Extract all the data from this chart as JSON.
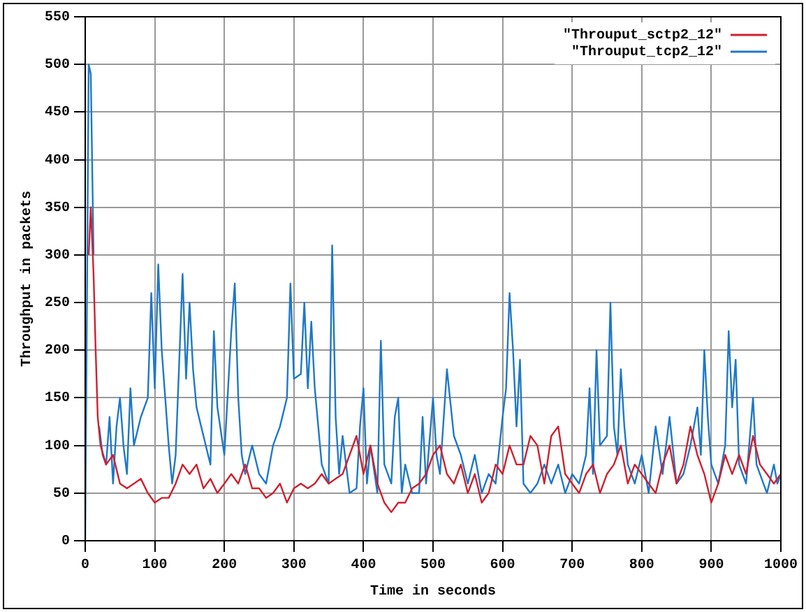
{
  "chart_data": {
    "type": "line",
    "xlabel": "Time in seconds",
    "ylabel": "Throughput in packets",
    "xlim": [
      0,
      1000
    ],
    "xticks": [
      0,
      100,
      200,
      300,
      400,
      500,
      600,
      700,
      800,
      900,
      1000
    ],
    "ylim": [
      0,
      550
    ],
    "yticks": [
      0,
      50,
      100,
      150,
      200,
      250,
      300,
      350,
      400,
      450,
      500,
      550
    ],
    "grid": true,
    "legend": "top right",
    "marker": "none",
    "line_style": "solid",
    "series": [
      {
        "name": "\"Throuput_sctp2_12\"",
        "color": "#d0202e",
        "x": [
          5,
          8,
          12,
          15,
          18,
          22,
          30,
          40,
          50,
          60,
          70,
          80,
          90,
          100,
          110,
          120,
          130,
          140,
          150,
          160,
          170,
          180,
          190,
          200,
          210,
          220,
          230,
          240,
          250,
          260,
          270,
          280,
          290,
          300,
          310,
          320,
          330,
          340,
          350,
          360,
          370,
          380,
          390,
          400,
          410,
          420,
          430,
          440,
          450,
          460,
          470,
          480,
          490,
          500,
          510,
          520,
          530,
          540,
          550,
          560,
          570,
          580,
          590,
          600,
          610,
          620,
          630,
          640,
          650,
          660,
          670,
          680,
          690,
          700,
          710,
          720,
          730,
          740,
          750,
          760,
          770,
          780,
          790,
          800,
          810,
          820,
          830,
          840,
          850,
          860,
          870,
          880,
          890,
          900,
          910,
          920,
          930,
          940,
          950,
          960,
          970,
          980,
          990,
          1000
        ],
        "values": [
          300,
          350,
          280,
          200,
          130,
          100,
          80,
          90,
          60,
          55,
          60,
          65,
          50,
          40,
          45,
          45,
          60,
          80,
          70,
          80,
          55,
          65,
          50,
          60,
          70,
          60,
          80,
          55,
          55,
          45,
          50,
          60,
          40,
          55,
          60,
          55,
          60,
          70,
          60,
          65,
          70,
          90,
          110,
          70,
          100,
          60,
          40,
          30,
          40,
          40,
          55,
          60,
          70,
          90,
          100,
          70,
          60,
          80,
          50,
          70,
          40,
          50,
          80,
          70,
          100,
          80,
          80,
          110,
          100,
          60,
          110,
          120,
          70,
          60,
          50,
          70,
          80,
          50,
          70,
          80,
          100,
          60,
          80,
          70,
          60,
          50,
          80,
          100,
          60,
          80,
          120,
          90,
          70,
          40,
          60,
          90,
          70,
          90,
          70,
          110,
          80,
          70,
          60,
          70
        ]
      },
      {
        "name": "\"Throuput_tcp2_12\"",
        "color": "#1e78c8",
        "x": [
          0,
          5,
          8,
          12,
          15,
          20,
          25,
          30,
          35,
          40,
          45,
          50,
          55,
          60,
          65,
          70,
          80,
          90,
          95,
          100,
          105,
          110,
          115,
          120,
          125,
          130,
          140,
          145,
          150,
          155,
          160,
          170,
          180,
          185,
          190,
          200,
          210,
          215,
          220,
          225,
          230,
          240,
          250,
          260,
          270,
          280,
          290,
          295,
          300,
          310,
          315,
          320,
          325,
          330,
          340,
          350,
          355,
          360,
          365,
          370,
          380,
          390,
          395,
          400,
          405,
          410,
          420,
          425,
          430,
          440,
          445,
          450,
          455,
          460,
          470,
          480,
          485,
          490,
          500,
          505,
          510,
          520,
          530,
          540,
          550,
          560,
          570,
          580,
          590,
          600,
          605,
          610,
          615,
          620,
          625,
          630,
          640,
          650,
          660,
          670,
          680,
          690,
          700,
          710,
          720,
          725,
          730,
          735,
          740,
          750,
          755,
          760,
          765,
          770,
          775,
          780,
          790,
          800,
          810,
          820,
          830,
          840,
          850,
          860,
          870,
          880,
          885,
          890,
          895,
          900,
          910,
          920,
          925,
          930,
          935,
          940,
          950,
          960,
          965,
          970,
          980,
          990,
          995,
          1000
        ],
        "values": [
          0,
          500,
          490,
          300,
          null,
          120,
          90,
          80,
          130,
          60,
          120,
          150,
          100,
          70,
          160,
          100,
          130,
          150,
          260,
          160,
          290,
          200,
          150,
          100,
          60,
          90,
          280,
          170,
          250,
          180,
          140,
          110,
          80,
          220,
          140,
          90,
          220,
          270,
          150,
          90,
          70,
          100,
          70,
          60,
          100,
          120,
          150,
          270,
          170,
          175,
          250,
          160,
          230,
          160,
          80,
          60,
          310,
          130,
          70,
          110,
          50,
          55,
          120,
          160,
          60,
          100,
          50,
          210,
          80,
          60,
          130,
          150,
          50,
          80,
          50,
          50,
          130,
          60,
          150,
          90,
          70,
          180,
          110,
          90,
          60,
          90,
          50,
          70,
          60,
          130,
          160,
          260,
          200,
          120,
          190,
          60,
          50,
          60,
          80,
          60,
          80,
          50,
          70,
          60,
          90,
          160,
          70,
          200,
          100,
          110,
          250,
          120,
          90,
          180,
          120,
          80,
          60,
          90,
          50,
          120,
          70,
          130,
          60,
          70,
          100,
          140,
          90,
          200,
          130,
          80,
          60,
          100,
          220,
          140,
          190,
          80,
          60,
          150,
          80,
          70,
          50,
          80,
          60,
          70
        ]
      }
    ]
  }
}
